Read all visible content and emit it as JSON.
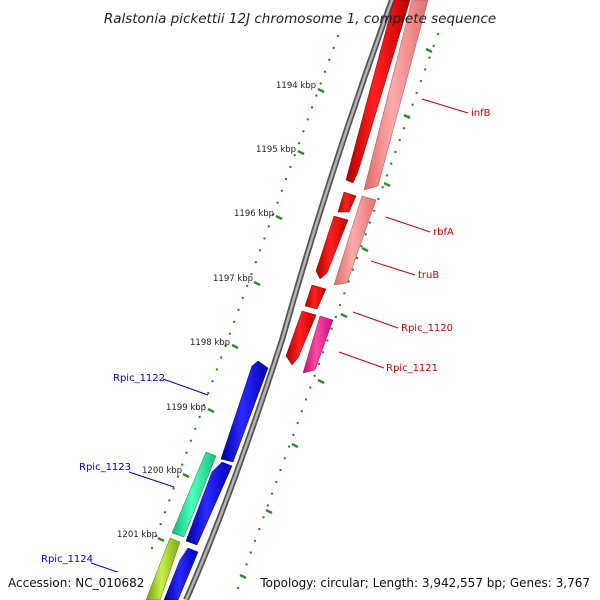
{
  "map": {
    "title": "Ralstonia pickettii 12J chromosome 1, complete sequence",
    "accession": "Accession: NC_010682",
    "summary": "Topology: circular; Length: 3,942,557 bp; Genes: 3,767",
    "tick_labels": [
      "1194 kbp",
      "1195 kbp",
      "1196 kbp",
      "1197 kbp",
      "1198 kbp",
      "1199 kbp",
      "1200 kbp",
      "1201 kbp"
    ],
    "colors": {
      "backbone": "#8a8a8a",
      "tick": "#2e8b2e",
      "forward_label": "#cc0000",
      "reverse_label": "#0000cc"
    }
  },
  "features": [
    {
      "name": "infB",
      "strand": "forward",
      "track": "cds",
      "color": "#ff0000"
    },
    {
      "name": "infB",
      "strand": "forward",
      "track": "gene",
      "color": "#f08080"
    },
    {
      "name": "rbfA",
      "strand": "forward",
      "track": "cds",
      "color": "#ff0000"
    },
    {
      "name": "rbfA",
      "strand": "forward",
      "track": "gene",
      "color": "#f08080"
    },
    {
      "name": "truB",
      "strand": "forward",
      "track": "cds",
      "color": "#ff0000"
    },
    {
      "name": "truB",
      "strand": "forward",
      "track": "gene",
      "color": "#f08080"
    },
    {
      "name": "Rpic_1120",
      "strand": "forward",
      "track": "cds",
      "color": "#ff0000"
    },
    {
      "name": "Rpic_1121",
      "strand": "forward",
      "track": "cds",
      "color": "#ff0000"
    },
    {
      "name": "Rpic_1121",
      "strand": "forward",
      "track": "gene",
      "color": "#ff1493"
    },
    {
      "name": "Rpic_1122",
      "strand": "reverse",
      "track": "cds",
      "color": "#0000ff"
    },
    {
      "name": "Rpic_1123",
      "strand": "reverse",
      "track": "cds",
      "color": "#0000ff"
    },
    {
      "name": "Rpic_1123",
      "strand": "reverse",
      "track": "gene",
      "color": "#2ee8a0"
    },
    {
      "name": "Rpic_1124",
      "strand": "reverse",
      "track": "cds",
      "color": "#0000ff"
    },
    {
      "name": "Rpic_1124",
      "strand": "reverse",
      "track": "gene",
      "color": "#9acd32"
    }
  ],
  "labels": {
    "infB": "infB",
    "rbfA": "rbfA",
    "truB": "truB",
    "rpic_1120": "Rpic_1120",
    "rpic_1121": "Rpic_1121",
    "rpic_1122": "Rpic_1122",
    "rpic_1123": "Rpic_1123",
    "rpic_1124": "Rpic_1124"
  }
}
